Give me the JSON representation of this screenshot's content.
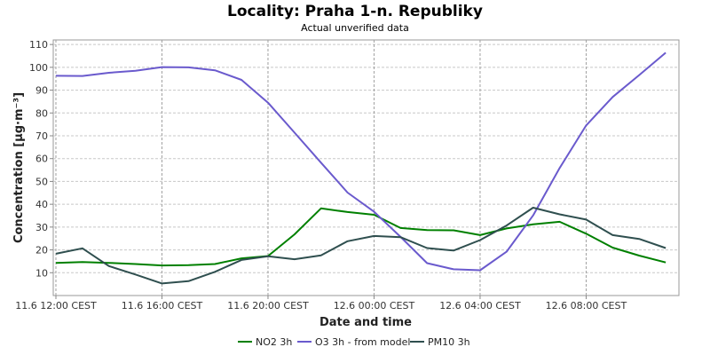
{
  "chart_data": {
    "type": "line",
    "title": "Locality: Praha 1-n. Republiky",
    "subtitle": "Actual unverified data",
    "xlabel": "Date and time",
    "ylabel": "Concentration [µg·m⁻³]",
    "ylim": [
      0,
      112
    ],
    "xlim": [
      -0.1,
      23.5
    ],
    "yticks": [
      10,
      20,
      30,
      40,
      50,
      60,
      70,
      80,
      90,
      100,
      110
    ],
    "xticks": [
      {
        "pos": 0,
        "label": "11.6 12:00 CEST"
      },
      {
        "pos": 4,
        "label": "11.6 16:00 CEST"
      },
      {
        "pos": 8,
        "label": "11.6 20:00 CEST"
      },
      {
        "pos": 12,
        "label": "12.6 00:00 CEST"
      },
      {
        "pos": 16,
        "label": "12.6 04:00 CEST"
      },
      {
        "pos": 20,
        "label": "12.6 08:00 CEST"
      }
    ],
    "grid": true,
    "legend_position": "bottom",
    "x": [
      0,
      1,
      2,
      3,
      4,
      5,
      6,
      7,
      8,
      9,
      10,
      11,
      12,
      13,
      14,
      15,
      16,
      17,
      18,
      19,
      20,
      21,
      22,
      23
    ],
    "series": [
      {
        "name": "NO2 3h",
        "color": "#008000",
        "values": [
          14.3,
          14.7,
          14.3,
          13.8,
          13.2,
          13.3,
          13.8,
          16.3,
          17.3,
          26.8,
          38.2,
          36.6,
          35.4,
          29.6,
          28.7,
          28.6,
          26.5,
          29.4,
          31.2,
          32.3,
          27.1,
          21.0,
          17.5,
          14.5
        ]
      },
      {
        "name": "O3 3h - from model",
        "color": "#6a5acd",
        "values": [
          96.3,
          96.2,
          97.6,
          98.5,
          100.1,
          100.0,
          98.7,
          94.5,
          84.5,
          71.4,
          58.2,
          45.1,
          36.7,
          25.7,
          14.2,
          11.5,
          11.1,
          19.2,
          35.1,
          55.9,
          74.5,
          87.0,
          96.6,
          106.4
        ]
      },
      {
        "name": "PM10 3h",
        "color": "#2f4f4f",
        "values": [
          18.3,
          20.7,
          12.9,
          9.2,
          5.3,
          6.3,
          10.4,
          15.6,
          17.2,
          15.9,
          17.6,
          23.8,
          26.1,
          25.6,
          20.8,
          19.7,
          24.3,
          30.7,
          38.5,
          35.6,
          33.3,
          26.5,
          24.8,
          20.8
        ]
      }
    ]
  }
}
